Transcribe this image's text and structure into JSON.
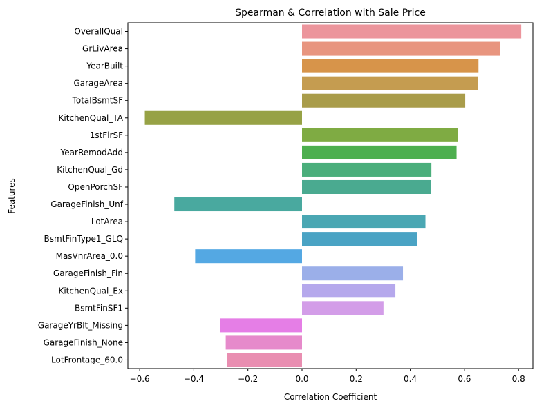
{
  "chart_data": {
    "type": "bar",
    "orientation": "horizontal",
    "title": "Spearman & Correlation with Sale Price",
    "xlabel": "Correlation Coefficient",
    "ylabel": "Features",
    "xlim": [
      -0.6,
      0.8
    ],
    "xticks": [
      -0.6,
      -0.4,
      -0.2,
      0.0,
      0.2,
      0.4,
      0.6,
      0.8
    ],
    "xtick_labels": [
      "−0.6",
      "−0.4",
      "−0.2",
      "0.0",
      "0.2",
      "0.4",
      "0.6",
      "0.8"
    ],
    "grid": false,
    "legend": "none",
    "categories": [
      "OverallQual",
      "GrLivArea",
      "YearBuilt",
      "GarageArea",
      "TotalBsmtSF",
      "KitchenQual_TA",
      "1stFlrSF",
      "YearRemodAdd",
      "KitchenQual_Gd",
      "OpenPorchSF",
      "GarageFinish_Unf",
      "LotArea",
      "BsmtFinType1_GLQ",
      "MasVnrArea_0.0",
      "GarageFinish_Fin",
      "KitchenQual_Ex",
      "BsmtFinSF1",
      "GarageYrBlt_Missing",
      "GarageFinish_None",
      "LotFrontage_60.0"
    ],
    "values": [
      0.81,
      0.731,
      0.652,
      0.649,
      0.603,
      -0.581,
      0.575,
      0.571,
      0.478,
      0.477,
      -0.472,
      0.456,
      0.424,
      -0.395,
      0.373,
      0.345,
      0.301,
      -0.302,
      -0.282,
      -0.277
    ],
    "colors": [
      "#ec959c",
      "#e8957f",
      "#d7944a",
      "#c59c50",
      "#a99c4a",
      "#97a245",
      "#7fab43",
      "#4daf4f",
      "#4aae7b",
      "#4aaa90",
      "#49a99f",
      "#4aa7b3",
      "#4aa3c4",
      "#54a8e3",
      "#9bafe9",
      "#b5a8ec",
      "#d39de8",
      "#e57ee6",
      "#e68acb",
      "#e98eb1"
    ]
  }
}
